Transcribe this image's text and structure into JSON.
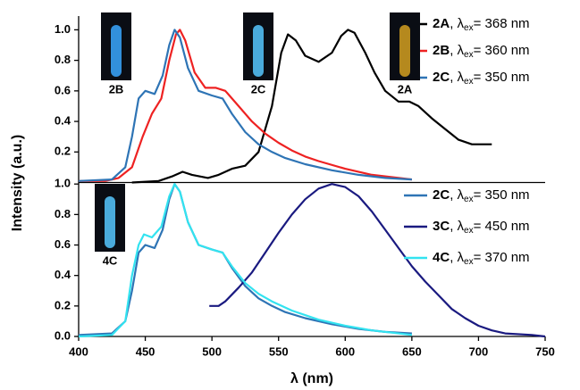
{
  "chart_data": [
    {
      "type": "line",
      "ylabel": "Intensity (a.u.)",
      "xlim": [
        400,
        750
      ],
      "ylim": [
        0,
        1.09
      ],
      "yticks": [
        0.2,
        0.4,
        0.6,
        0.8,
        {
          "value": 1,
          "label": "1.0"
        }
      ],
      "series": [
        {
          "name": "2A, λex= 368 nm",
          "color": "#000000",
          "x": [
            440,
            460,
            470,
            478,
            485,
            497,
            505,
            515,
            525,
            535,
            545,
            552,
            557,
            563,
            570,
            580,
            590,
            597,
            602,
            607,
            615,
            622,
            630,
            640,
            648,
            655,
            665,
            675,
            685,
            695,
            705,
            710
          ],
          "values": [
            0.0,
            0.01,
            0.04,
            0.07,
            0.05,
            0.03,
            0.05,
            0.09,
            0.11,
            0.2,
            0.5,
            0.85,
            0.97,
            0.93,
            0.83,
            0.79,
            0.85,
            0.96,
            1.0,
            0.98,
            0.85,
            0.72,
            0.6,
            0.53,
            0.53,
            0.5,
            0.42,
            0.35,
            0.28,
            0.25,
            0.25,
            0.25
          ]
        },
        {
          "name": "2B, λex= 360 nm",
          "color": "#ee2222",
          "x": [
            400,
            420,
            430,
            440,
            448,
            455,
            462,
            468,
            473,
            476,
            480,
            487,
            495,
            503,
            510,
            520,
            530,
            540,
            550,
            560,
            570,
            580,
            600,
            620,
            640,
            650
          ],
          "values": [
            0.01,
            0.01,
            0.03,
            0.1,
            0.3,
            0.45,
            0.55,
            0.8,
            0.97,
            1.0,
            0.93,
            0.72,
            0.62,
            0.62,
            0.6,
            0.5,
            0.4,
            0.32,
            0.26,
            0.21,
            0.17,
            0.14,
            0.09,
            0.05,
            0.03,
            0.02
          ]
        },
        {
          "name": "2C, λex= 350 nm",
          "color": "#2e74b5",
          "x": [
            400,
            425,
            435,
            440,
            445,
            450,
            457,
            463,
            468,
            472,
            476,
            482,
            490,
            500,
            508,
            515,
            525,
            535,
            545,
            555,
            570,
            590,
            610,
            630,
            650
          ],
          "values": [
            0.01,
            0.02,
            0.1,
            0.3,
            0.55,
            0.6,
            0.58,
            0.7,
            0.9,
            1.0,
            0.95,
            0.75,
            0.6,
            0.57,
            0.55,
            0.45,
            0.33,
            0.25,
            0.2,
            0.16,
            0.12,
            0.08,
            0.05,
            0.03,
            0.02
          ]
        }
      ],
      "annotations": [
        {
          "text": "2B",
          "color": "#ee2222"
        },
        {
          "text": "2C",
          "color": "#2e74b5"
        },
        {
          "text": "2A",
          "color": "#000000"
        }
      ]
    },
    {
      "type": "line",
      "xlabel": "λ (nm)",
      "xlim": [
        400,
        750
      ],
      "ylim": [
        0,
        1.01
      ],
      "xticks": [
        400,
        450,
        500,
        550,
        600,
        650,
        700,
        750
      ],
      "yticks": [
        {
          "value": 0,
          "label": "0.0"
        },
        0.2,
        0.4,
        0.6,
        0.8,
        {
          "value": 1,
          "label": "1.0"
        }
      ],
      "series": [
        {
          "name": "2C, λex= 350 nm",
          "color": "#2e74b5",
          "x": [
            400,
            425,
            435,
            440,
            445,
            450,
            457,
            463,
            468,
            472,
            476,
            482,
            490,
            500,
            508,
            515,
            525,
            535,
            545,
            555,
            570,
            590,
            610,
            630,
            650
          ],
          "values": [
            0.01,
            0.02,
            0.1,
            0.3,
            0.55,
            0.6,
            0.58,
            0.7,
            0.9,
            1.0,
            0.95,
            0.75,
            0.6,
            0.57,
            0.55,
            0.45,
            0.33,
            0.25,
            0.2,
            0.16,
            0.12,
            0.08,
            0.05,
            0.03,
            0.02
          ]
        },
        {
          "name": "3C, λex= 450 nm",
          "color": "#1a1a80",
          "x": [
            498,
            505,
            510,
            520,
            530,
            540,
            550,
            560,
            570,
            580,
            590,
            600,
            610,
            620,
            630,
            640,
            650,
            660,
            670,
            680,
            690,
            700,
            710,
            720,
            740,
            750
          ],
          "values": [
            0.2,
            0.2,
            0.23,
            0.32,
            0.42,
            0.55,
            0.68,
            0.8,
            0.9,
            0.97,
            1.0,
            0.98,
            0.92,
            0.82,
            0.7,
            0.58,
            0.46,
            0.36,
            0.27,
            0.18,
            0.12,
            0.07,
            0.04,
            0.02,
            0.01,
            0.0
          ]
        },
        {
          "name": "4C, λex= 370 nm",
          "color": "#33e3f0",
          "x": [
            400,
            425,
            435,
            440,
            445,
            449,
            455,
            462,
            468,
            472,
            476,
            482,
            490,
            500,
            508,
            515,
            525,
            535,
            545,
            560,
            580,
            600,
            620,
            650
          ],
          "values": [
            0.0,
            0.01,
            0.1,
            0.4,
            0.6,
            0.67,
            0.65,
            0.72,
            0.92,
            1.0,
            0.95,
            0.75,
            0.6,
            0.57,
            0.55,
            0.46,
            0.35,
            0.28,
            0.23,
            0.17,
            0.11,
            0.07,
            0.04,
            0.01
          ]
        }
      ],
      "annotations": [
        {
          "text": "4C",
          "color": "#33e3f0"
        }
      ]
    }
  ]
}
